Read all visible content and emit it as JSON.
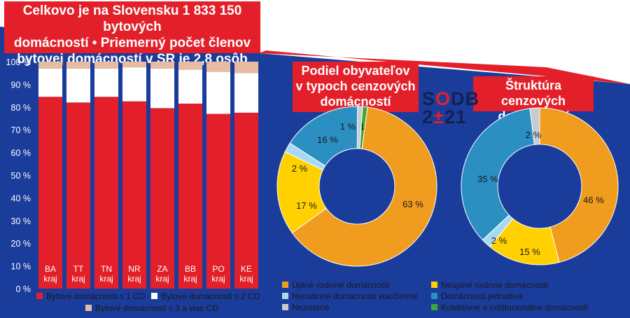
{
  "header": {
    "title_lines": [
      "Celkovo je na Slovensku 1 833 150 bytových",
      "domácností • Priemerný počet členov",
      "bytovej domácností v SR je 2,8 osôb"
    ]
  },
  "logo": {
    "line1_a": "S",
    "line1_b": "O",
    "line1_c": "DB",
    "line2_a": "2",
    "line2_b": "±",
    "line2_c": "21"
  },
  "colors": {
    "background": "#ffffff",
    "blue": "#1a3c9b",
    "title_red": "#e3202a",
    "bar_red": "#e3202a",
    "bar_white": "#ffffff",
    "bar_beige": "#e7bca0",
    "orange": "#ef9c1f",
    "yellow": "#ffd100",
    "lightblue": "#a9d9f2",
    "teal": "#2b8fc2",
    "grey": "#c8ccd2",
    "green": "#3aa935"
  },
  "chart_data": [
    {
      "type": "bar",
      "stacked": true,
      "categories": [
        "BA kraj",
        "TT kraj",
        "TN kraj",
        "NR kraj",
        "ZA kraj",
        "BB kraj",
        "PO kraj",
        "KE kraj"
      ],
      "category_lines": [
        [
          "BA",
          "kraj"
        ],
        [
          "TT",
          "kraj"
        ],
        [
          "TN",
          "kraj"
        ],
        [
          "NR",
          "kraj"
        ],
        [
          "ZA",
          "kraj"
        ],
        [
          "BB",
          "kraj"
        ],
        [
          "PO",
          "kraj"
        ],
        [
          "KE",
          "kraj"
        ]
      ],
      "series": [
        {
          "name": "Bytové domácnosti s 1 CD",
          "values": [
            84.5,
            82,
            84.5,
            82.5,
            79.5,
            81.5,
            77,
            77.5
          ]
        },
        {
          "name": "Bytové domácnosti s 2 CD",
          "values": [
            12.5,
            15,
            12.5,
            15,
            17.5,
            15,
            18.5,
            17.5
          ]
        },
        {
          "name": "Bytové domácnosti s 3 a viac CD",
          "values": [
            3,
            3,
            3,
            2.5,
            3,
            3.5,
            4.5,
            5
          ]
        }
      ],
      "ylim": [
        0,
        100
      ],
      "ytick_labels": [
        "0 %",
        "10 %",
        "20 %",
        "30 %",
        "40 %",
        "50 %",
        "60 %",
        "70 %",
        "80 %",
        "90 %",
        "100 %"
      ],
      "ytick_values": [
        0,
        10,
        20,
        30,
        40,
        50,
        60,
        70,
        80,
        90,
        100
      ]
    },
    {
      "type": "pie",
      "title_lines": [
        "Podiel obyvateľov",
        "v typoch cenzových",
        "domácností"
      ],
      "labels": [
        "Úplné rodinné domácnosti",
        "Neúplné rodinné domácnosti",
        "Nerodinné domácnosti viacčlenné",
        "Domácnosti jednotlivé",
        "Nezistené",
        "Kolektívne a inštitucionálne domácnosti"
      ],
      "values": [
        63,
        17,
        2,
        16,
        1,
        1
      ],
      "value_labels": [
        "63 %",
        "17 %",
        "2 %",
        "16 %",
        "1 %",
        "1 %"
      ]
    },
    {
      "type": "pie",
      "title_lines": [
        "Štruktúra cenzových",
        "domácností"
      ],
      "labels": [
        "Úplné rodinné domácnosti",
        "Neúplné rodinné domácnosti",
        "Nerodinné domácnosti viacčlenné",
        "Domácnosti jednotlivé",
        "Nezistené"
      ],
      "values": [
        46,
        15,
        2,
        35,
        2
      ],
      "value_labels": [
        "46 %",
        "15 %",
        "2 %",
        "35 %",
        "2 %"
      ]
    }
  ],
  "legend_pies": [
    {
      "label": "Úplné rodinné domácnosti",
      "color": "#ef9c1f"
    },
    {
      "label": "Neúplné rodinné domácnosti",
      "color": "#ffd100"
    },
    {
      "label": "Nerodinné domácnosti viacčlenné",
      "color": "#a9d9f2"
    },
    {
      "label": "Domácnosti jednotlivé",
      "color": "#2b8fc2"
    },
    {
      "label": "Nezistené",
      "color": "#c8ccd2"
    },
    {
      "label": "Kolektívne a inštitucionálne domácnosti",
      "color": "#3aa935"
    }
  ]
}
